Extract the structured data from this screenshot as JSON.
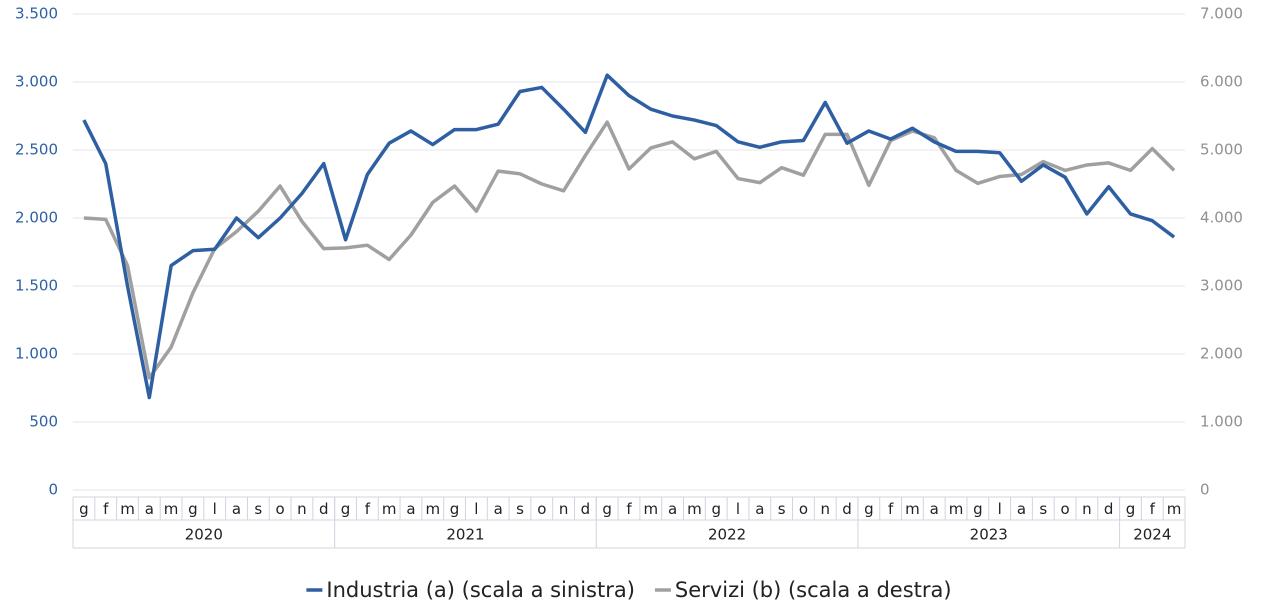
{
  "chart_data": {
    "type": "line",
    "categories": [
      "g",
      "f",
      "m",
      "a",
      "m",
      "g",
      "l",
      "a",
      "s",
      "o",
      "n",
      "d",
      "g",
      "f",
      "m",
      "a",
      "m",
      "g",
      "l",
      "a",
      "s",
      "o",
      "n",
      "d",
      "g",
      "f",
      "m",
      "a",
      "m",
      "g",
      "l",
      "a",
      "s",
      "o",
      "n",
      "d",
      "g",
      "f",
      "m",
      "a",
      "m",
      "g",
      "l",
      "a",
      "s",
      "o",
      "n",
      "d",
      "g",
      "f",
      "m"
    ],
    "x_groups": [
      {
        "label": "2020",
        "count": 12
      },
      {
        "label": "2021",
        "count": 12
      },
      {
        "label": "2022",
        "count": 12
      },
      {
        "label": "2023",
        "count": 12
      },
      {
        "label": "2024",
        "count": 3
      }
    ],
    "series": [
      {
        "name": "Industria (a) (scala a sinistra)",
        "color": "#2e5fa3",
        "axis": "y",
        "values": [
          2720,
          2400,
          1500,
          680,
          1650,
          1760,
          1770,
          2000,
          1855,
          2000,
          2180,
          2400,
          1840,
          2320,
          2550,
          2640,
          2540,
          2650,
          2650,
          2690,
          2930,
          2960,
          2800,
          2630,
          3050,
          2900,
          2800,
          2750,
          2720,
          2680,
          2560,
          2520,
          2560,
          2570,
          2850,
          2550,
          2640,
          2580,
          2660,
          2560,
          2490,
          2490,
          2480,
          2270,
          2390,
          2300,
          2030,
          2230,
          2030,
          1980,
          1860
        ]
      },
      {
        "name": "Servizi (b) (scala a destra)",
        "color": "#a0a0a0",
        "axis": "y2",
        "values": [
          4000,
          3980,
          3300,
          1650,
          2100,
          2900,
          3550,
          3800,
          4100,
          4470,
          3950,
          3550,
          3560,
          3600,
          3390,
          3750,
          4230,
          4470,
          4100,
          4690,
          4650,
          4500,
          4400,
          4920,
          5410,
          4720,
          5030,
          5120,
          4870,
          4980,
          4580,
          4520,
          4740,
          4630,
          5230,
          5230,
          4480,
          5140,
          5280,
          5180,
          4700,
          4510,
          4610,
          4640,
          4830,
          4700,
          4780,
          4810,
          4700,
          5020,
          4700
        ]
      }
    ],
    "ylim": [
      0,
      3500
    ],
    "yticks": [
      0,
      500,
      {
        "value": 1000,
        "label": "1.000"
      },
      {
        "value": 1500,
        "label": "1.500"
      },
      {
        "value": 2000,
        "label": "2.000"
      },
      {
        "value": 2500,
        "label": "2.500"
      },
      {
        "value": 3000,
        "label": "3.000"
      },
      {
        "value": 3500,
        "label": "3.500"
      }
    ],
    "y2lim": [
      0,
      7000
    ],
    "y2ticks": [
      0,
      {
        "value": 1000,
        "label": "1.000"
      },
      {
        "value": 2000,
        "label": "2.000"
      },
      {
        "value": 3000,
        "label": "3.000"
      },
      {
        "value": 4000,
        "label": "4.000"
      },
      {
        "value": 5000,
        "label": "5.000"
      },
      {
        "value": 6000,
        "label": "6.000"
      },
      {
        "value": 7000,
        "label": "7.000"
      }
    ],
    "grid": true
  }
}
